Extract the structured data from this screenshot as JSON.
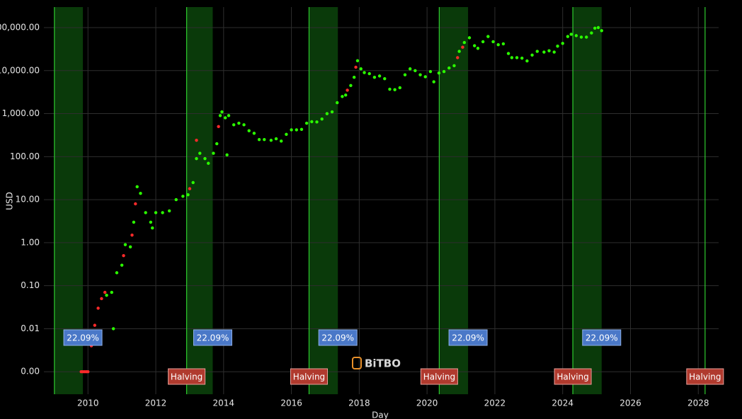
{
  "chart_data": {
    "type": "scatter",
    "yscale": "log",
    "grid": true,
    "background": "#000000",
    "x_label": "Day",
    "y_label": "USD",
    "watermark": "BiTBO",
    "xlim": [
      2008.7,
      2028.6
    ],
    "xticks": [
      2010,
      2012,
      2014,
      2016,
      2018,
      2020,
      2022,
      2024,
      2026,
      2028
    ],
    "ylim": [
      0.0003,
      300000
    ],
    "yticks": [
      {
        "value": 0.001,
        "label": "0.00"
      },
      {
        "value": 0.01,
        "label": "0.01"
      },
      {
        "value": 0.1,
        "label": "0.10"
      },
      {
        "value": 1,
        "label": "1.00"
      },
      {
        "value": 10,
        "label": "10.00"
      },
      {
        "value": 100,
        "label": "100.00"
      },
      {
        "value": 1000,
        "label": "1,000.00"
      },
      {
        "value": 10000,
        "label": "10,000.00"
      },
      {
        "value": 100000,
        "label": "100,000.00"
      }
    ],
    "region_color": "#0a3a0a",
    "line_color": "#2ecc2e",
    "regions": [
      {
        "start": 2009.01,
        "end": 2009.85,
        "label": "22.09%"
      },
      {
        "start": 2012.91,
        "end": 2013.68,
        "label": "22.09%"
      },
      {
        "start": 2016.52,
        "end": 2017.37,
        "label": "22.09%"
      },
      {
        "start": 2020.36,
        "end": 2021.21,
        "label": "22.09%"
      },
      {
        "start": 2024.3,
        "end": 2025.15,
        "label": "22.09%"
      }
    ],
    "lines": [
      {
        "x": 2009.01
      },
      {
        "x": 2012.91,
        "label": "Halving"
      },
      {
        "x": 2016.52,
        "label": "Halving"
      },
      {
        "x": 2020.36,
        "label": "Halving"
      },
      {
        "x": 2024.3,
        "label": "Halving"
      },
      {
        "x": 2028.2,
        "label": "Halving"
      }
    ],
    "series": [
      {
        "color": "#2bff00",
        "x": [
          2010.55,
          2010.7,
          2010.75,
          2010.85,
          2011.0,
          2011.1,
          2011.25,
          2011.35,
          2011.45,
          2011.55,
          2011.7,
          2011.85,
          2011.9,
          2012.0,
          2012.2,
          2012.4,
          2012.6,
          2012.8,
          2012.95,
          2013.1,
          2013.2,
          2013.3,
          2013.45,
          2013.55,
          2013.7,
          2013.8,
          2013.9,
          2013.95,
          2014.05,
          2014.1,
          2014.15,
          2014.3,
          2014.45,
          2014.6,
          2014.75,
          2014.9,
          2015.05,
          2015.2,
          2015.4,
          2015.55,
          2015.7,
          2015.85,
          2016.0,
          2016.15,
          2016.3,
          2016.45,
          2016.6,
          2016.75,
          2016.9,
          2017.05,
          2017.2,
          2017.35,
          2017.5,
          2017.6,
          2017.75,
          2017.85,
          2017.95,
          2018.05,
          2018.15,
          2018.3,
          2018.45,
          2018.6,
          2018.75,
          2018.9,
          2019.05,
          2019.2,
          2019.35,
          2019.5,
          2019.65,
          2019.8,
          2019.95,
          2020.1,
          2020.2,
          2020.35,
          2020.5,
          2020.65,
          2020.8,
          2020.95,
          2021.1,
          2021.25,
          2021.4,
          2021.5,
          2021.65,
          2021.8,
          2021.95,
          2022.1,
          2022.25,
          2022.4,
          2022.5,
          2022.65,
          2022.8,
          2022.95,
          2023.1,
          2023.25,
          2023.45,
          2023.6,
          2023.75,
          2023.85,
          2024.0,
          2024.15,
          2024.25,
          2024.4,
          2024.55,
          2024.7,
          2024.85,
          2024.95,
          2025.05,
          2025.15
        ],
        "values": [
          0.06,
          0.07,
          0.01,
          0.2,
          0.3,
          0.9,
          0.8,
          3,
          20,
          14,
          5,
          3,
          2.2,
          5,
          5,
          5.5,
          10,
          12,
          13,
          25,
          90,
          120,
          90,
          70,
          120,
          200,
          900,
          1100,
          800,
          110,
          900,
          550,
          600,
          550,
          400,
          350,
          250,
          250,
          240,
          260,
          230,
          330,
          420,
          420,
          430,
          600,
          650,
          640,
          750,
          1000,
          1100,
          1800,
          2500,
          2700,
          4500,
          7000,
          17000,
          11000,
          9000,
          8500,
          7000,
          7500,
          6500,
          3700,
          3600,
          4000,
          8000,
          11000,
          10000,
          8000,
          7200,
          9500,
          5500,
          8800,
          9500,
          11500,
          13000,
          28000,
          45000,
          58000,
          38000,
          33000,
          47000,
          62000,
          47000,
          40000,
          42000,
          25000,
          20000,
          20000,
          19500,
          16800,
          23000,
          28000,
          27000,
          29000,
          27000,
          37000,
          43000,
          62000,
          70000,
          65000,
          60000,
          60000,
          75000,
          97000,
          100000,
          85000
        ]
      },
      {
        "color": "#ff2a2a",
        "x": [
          2009.8,
          2009.85,
          2009.9,
          2009.95,
          2010.0,
          2010.1,
          2010.2,
          2010.3,
          2010.4,
          2010.5,
          2011.05,
          2011.3,
          2011.4,
          2013.0,
          2013.2,
          2013.85,
          2017.65,
          2017.9,
          2020.9,
          2021.05
        ],
        "values": [
          0.001,
          0.001,
          0.001,
          0.001,
          0.001,
          0.004,
          0.012,
          0.03,
          0.05,
          0.07,
          0.5,
          1.5,
          8,
          18,
          240,
          500,
          3500,
          12000,
          20000,
          35000
        ]
      }
    ]
  }
}
